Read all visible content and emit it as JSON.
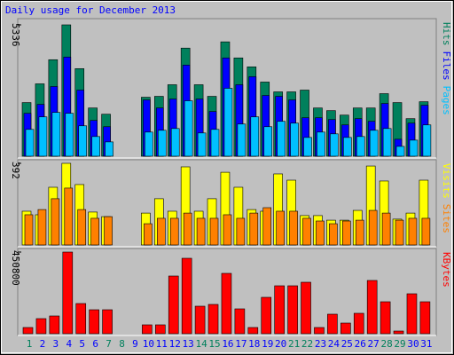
{
  "chart_data": [
    {
      "type": "bar",
      "title": "Daily usage for December 2013",
      "ylim": [
        0,
        5336
      ],
      "yticks": [
        5336
      ],
      "series": [
        {
          "name": "Hits",
          "color": "#00805c",
          "values": [
            2178,
            2940,
            3920,
            5336,
            3557,
            1960,
            1706,
            0,
            0,
            2396,
            2432,
            2904,
            4392,
            2904,
            2432,
            4646,
            3993,
            3630,
            3013,
            2614,
            2614,
            2686,
            1960,
            1851,
            1670,
            1960,
            1960,
            2541,
            2178,
            1525,
            2214
          ]
        },
        {
          "name": "Files",
          "color": "#0000ff",
          "values": [
            1742,
            2105,
            2831,
            4029,
            2686,
            1452,
            1198,
            0,
            0,
            2287,
            1960,
            2323,
            3703,
            2323,
            1815,
            3993,
            2904,
            3231,
            2468,
            2432,
            2287,
            1561,
            1561,
            1488,
            1271,
            1525,
            1416,
            2142,
            690,
            1343,
            2069
          ]
        },
        {
          "name": "Pages",
          "color": "#00c0ff",
          "values": [
            1089,
            1597,
            1779,
            1742,
            1234,
            799,
            581,
            0,
            0,
            980,
            1053,
            1125,
            2251,
            944,
            1089,
            2759,
            1307,
            1597,
            1198,
            1416,
            1343,
            762,
            980,
            908,
            762,
            799,
            1053,
            1125,
            399,
            653,
            1271
          ]
        }
      ]
    },
    {
      "type": "bar",
      "ylim": [
        0,
        392
      ],
      "yticks": [
        392
      ],
      "series": [
        {
          "name": "Visits",
          "color": "#ffff00",
          "values": [
            162,
            145,
            277,
            392,
            290,
            158,
            136,
            0,
            0,
            153,
            222,
            162,
            375,
            162,
            222,
            349,
            277,
            170,
            162,
            341,
            311,
            141,
            141,
            119,
            119,
            166,
            379,
            307,
            124,
            153,
            311
          ]
        },
        {
          "name": "Sites",
          "color": "#ff8000",
          "values": [
            145,
            170,
            222,
            273,
            170,
            128,
            136,
            0,
            0,
            102,
            128,
            128,
            153,
            128,
            128,
            145,
            128,
            153,
            179,
            162,
            162,
            128,
            115,
            102,
            115,
            119,
            166,
            153,
            119,
            128,
            128
          ]
        }
      ]
    },
    {
      "type": "bar",
      "ylim": [
        0,
        450800
      ],
      "yticks": [
        450800
      ],
      "categories": [
        "1",
        "2",
        "3",
        "4",
        "5",
        "6",
        "7",
        "8",
        "9",
        "10",
        "11",
        "12",
        "13",
        "14",
        "15",
        "16",
        "17",
        "18",
        "19",
        "20",
        "21",
        "22",
        "23",
        "24",
        "25",
        "26",
        "27",
        "28",
        "29",
        "30",
        "31"
      ],
      "category_colors": [
        "#00805c",
        "#0000ff",
        "#0000ff",
        "#0000ff",
        "#0000ff",
        "#0000ff",
        "#00805c",
        "#00805c",
        "#0000ff",
        "#0000ff",
        "#0000ff",
        "#0000ff",
        "#0000ff",
        "#00805c",
        "#00805c",
        "#0000ff",
        "#0000ff",
        "#0000ff",
        "#0000ff",
        "#0000ff",
        "#00805c",
        "#00805c",
        "#0000ff",
        "#0000ff",
        "#0000ff",
        "#0000ff",
        "#0000ff",
        "#00805c",
        "#00805c",
        "#0000ff",
        "#0000ff"
      ],
      "series": [
        {
          "name": "KBytes",
          "color": "#ff0000",
          "values": [
            34300,
            83300,
            98000,
            450800,
            166600,
            132300,
            132300,
            0,
            0,
            49000,
            49000,
            318500,
            416500,
            151900,
            161700,
            333200,
            137200,
            34300,
            200900,
            264600,
            264600,
            284200,
            34300,
            107800,
            58800,
            112700,
            294000,
            176400,
            14700,
            220500,
            176400
          ]
        }
      ]
    }
  ]
}
